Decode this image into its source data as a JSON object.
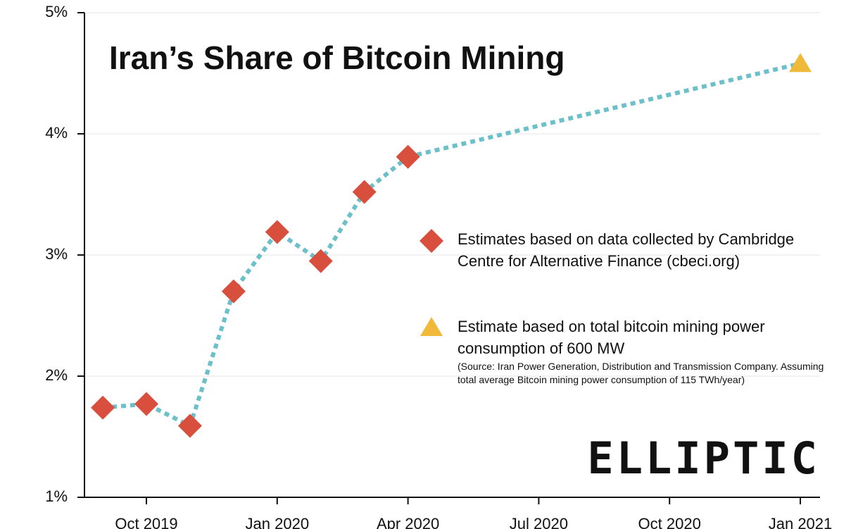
{
  "chart_data": {
    "type": "line",
    "title": "Iran’s Share of Bitcoin Mining",
    "x": [
      "2019-09",
      "2019-10",
      "2019-11",
      "2019-12",
      "2020-01",
      "2020-02",
      "2020-03",
      "2020-04",
      "2021-01"
    ],
    "series": [
      {
        "name": "Estimates based on data collected by Cambridge Centre for Alternative Finance (cbeci.org)",
        "color": "#d94f3d",
        "marker": "diamond",
        "values": [
          1.74,
          1.77,
          1.59,
          2.7,
          3.19,
          2.95,
          3.52,
          3.81,
          null
        ]
      },
      {
        "name": "Estimate based on total bitcoin mining power consumption of 600 MW",
        "color": "#f0b93a",
        "marker": "triangle",
        "values": [
          null,
          null,
          null,
          null,
          null,
          null,
          null,
          null,
          4.58
        ]
      }
    ],
    "line_color": "#6cc0c9",
    "note": "(Source: Iran Power Generation, Distribution and Transmission Company. Assuming total average Bitcoin mining power consumption of 115 TWh/year)",
    "logo": "ELLIPTIC",
    "ylim": [
      1,
      5
    ],
    "yticks": [
      {
        "value": 1,
        "label": "1%"
      },
      {
        "value": 2,
        "label": "2%"
      },
      {
        "value": 3,
        "label": "3%"
      },
      {
        "value": 4,
        "label": "4%"
      },
      {
        "value": 5,
        "label": "5%"
      }
    ],
    "xticks": [
      {
        "value": "2019-10",
        "label": "Oct 2019"
      },
      {
        "value": "2020-01",
        "label": "Jan 2020"
      },
      {
        "value": "2020-04",
        "label": "Apr 2020"
      },
      {
        "value": "2020-07",
        "label": "Jul 2020"
      },
      {
        "value": "2020-10",
        "label": "Oct 2020"
      },
      {
        "value": "2021-01",
        "label": "Jan 2021"
      }
    ],
    "grid": true
  }
}
